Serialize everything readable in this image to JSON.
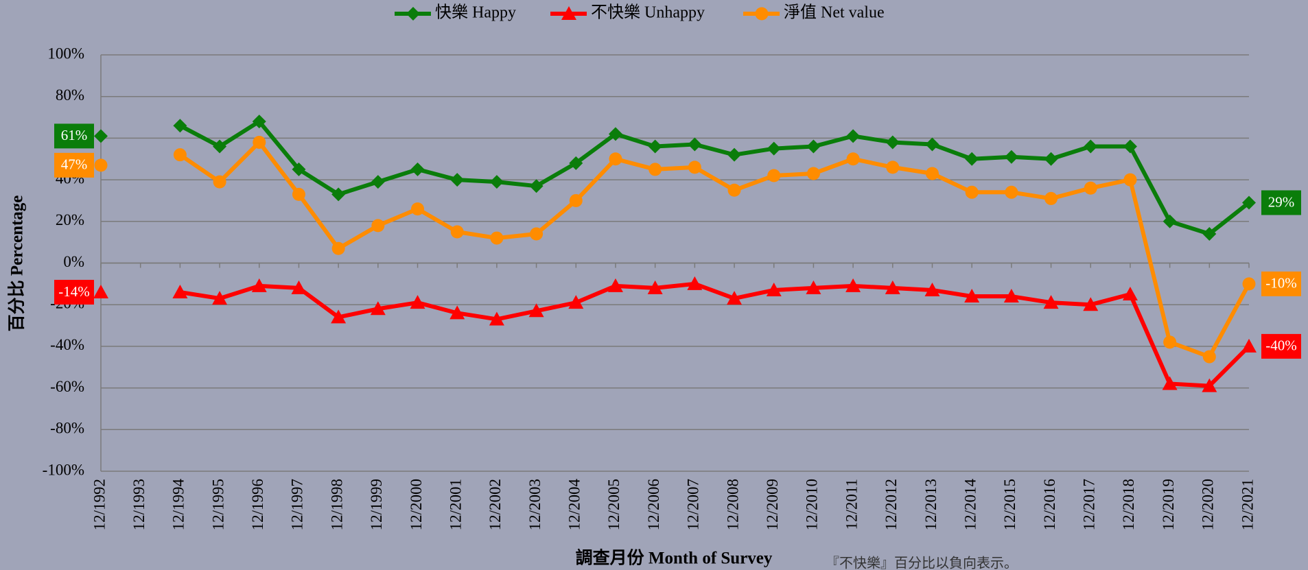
{
  "chart_data": {
    "type": "line",
    "y_axis_label": "百分比 Percentage",
    "x_axis_label": "調查月份 Month of Survey",
    "note": "『不快樂』百分比以負向表示。",
    "categories": [
      "12/1992",
      "12/1993",
      "12/1994",
      "12/1995",
      "12/1996",
      "12/1997",
      "12/1998",
      "12/1999",
      "12/2000",
      "12/2001",
      "12/2002",
      "12/2003",
      "12/2004",
      "12/2005",
      "12/2006",
      "12/2007",
      "12/2008",
      "12/2009",
      "12/2010",
      "12/2011",
      "12/2012",
      "12/2013",
      "12/2014",
      "12/2015",
      "12/2016",
      "12/2017",
      "12/2018",
      "12/2019",
      "12/2020",
      "12/2021"
    ],
    "series": [
      {
        "name": "快樂 Happy",
        "color": "#0a7d0a",
        "marker": "diamond",
        "values": [
          61,
          null,
          66,
          56,
          68,
          45,
          33,
          39,
          45,
          40,
          39,
          37,
          48,
          62,
          56,
          57,
          52,
          55,
          56,
          61,
          58,
          57,
          50,
          51,
          50,
          56,
          56,
          20,
          14,
          29
        ],
        "value_labels": [
          "61%",
          null,
          null,
          null,
          null,
          null,
          null,
          null,
          null,
          null,
          null,
          null,
          null,
          null,
          null,
          null,
          null,
          null,
          null,
          null,
          null,
          null,
          null,
          null,
          null,
          null,
          null,
          null,
          null,
          "29%"
        ]
      },
      {
        "name": "不快樂 Unhappy",
        "color": "#ff0000",
        "marker": "triangle",
        "values": [
          -14,
          null,
          -14,
          -17,
          -11,
          -12,
          -26,
          -22,
          -19,
          -24,
          -27,
          -23,
          -19,
          -11,
          -12,
          -10,
          -17,
          -13,
          -12,
          -11,
          -12,
          -13,
          -16,
          -16,
          -19,
          -20,
          -15,
          -58,
          -59,
          -40
        ],
        "value_labels": [
          "-14%",
          null,
          null,
          null,
          null,
          null,
          null,
          null,
          null,
          null,
          null,
          null,
          null,
          null,
          null,
          null,
          null,
          null,
          null,
          null,
          null,
          null,
          null,
          null,
          null,
          null,
          null,
          null,
          null,
          "-40%"
        ]
      },
      {
        "name": "淨值 Net value",
        "color": "#ff8c00",
        "marker": "circle",
        "values": [
          47,
          null,
          52,
          39,
          58,
          33,
          7,
          18,
          26,
          15,
          12,
          14,
          30,
          50,
          45,
          46,
          35,
          42,
          43,
          50,
          46,
          43,
          34,
          34,
          31,
          36,
          40,
          -38,
          -45,
          -10
        ],
        "value_labels": [
          "47%",
          null,
          null,
          null,
          null,
          null,
          null,
          null,
          null,
          null,
          null,
          null,
          null,
          null,
          null,
          null,
          null,
          null,
          null,
          null,
          null,
          null,
          null,
          null,
          null,
          null,
          null,
          null,
          null,
          "-10%"
        ]
      }
    ],
    "ylim": [
      -100,
      100
    ],
    "yticks": [
      {
        "value": -100,
        "label": "-100%"
      },
      {
        "value": -80,
        "label": "-80%"
      },
      {
        "value": -60,
        "label": "-60%"
      },
      {
        "value": -40,
        "label": "-40%"
      },
      {
        "value": -20,
        "label": "-20%"
      },
      {
        "value": 0,
        "label": "0%"
      },
      {
        "value": 20,
        "label": "20%"
      },
      {
        "value": 40,
        "label": "40%"
      },
      {
        "value": 60,
        "label": "60%"
      },
      {
        "value": 80,
        "label": "80%"
      },
      {
        "value": 100,
        "label": "100%"
      }
    ],
    "grid": true
  }
}
